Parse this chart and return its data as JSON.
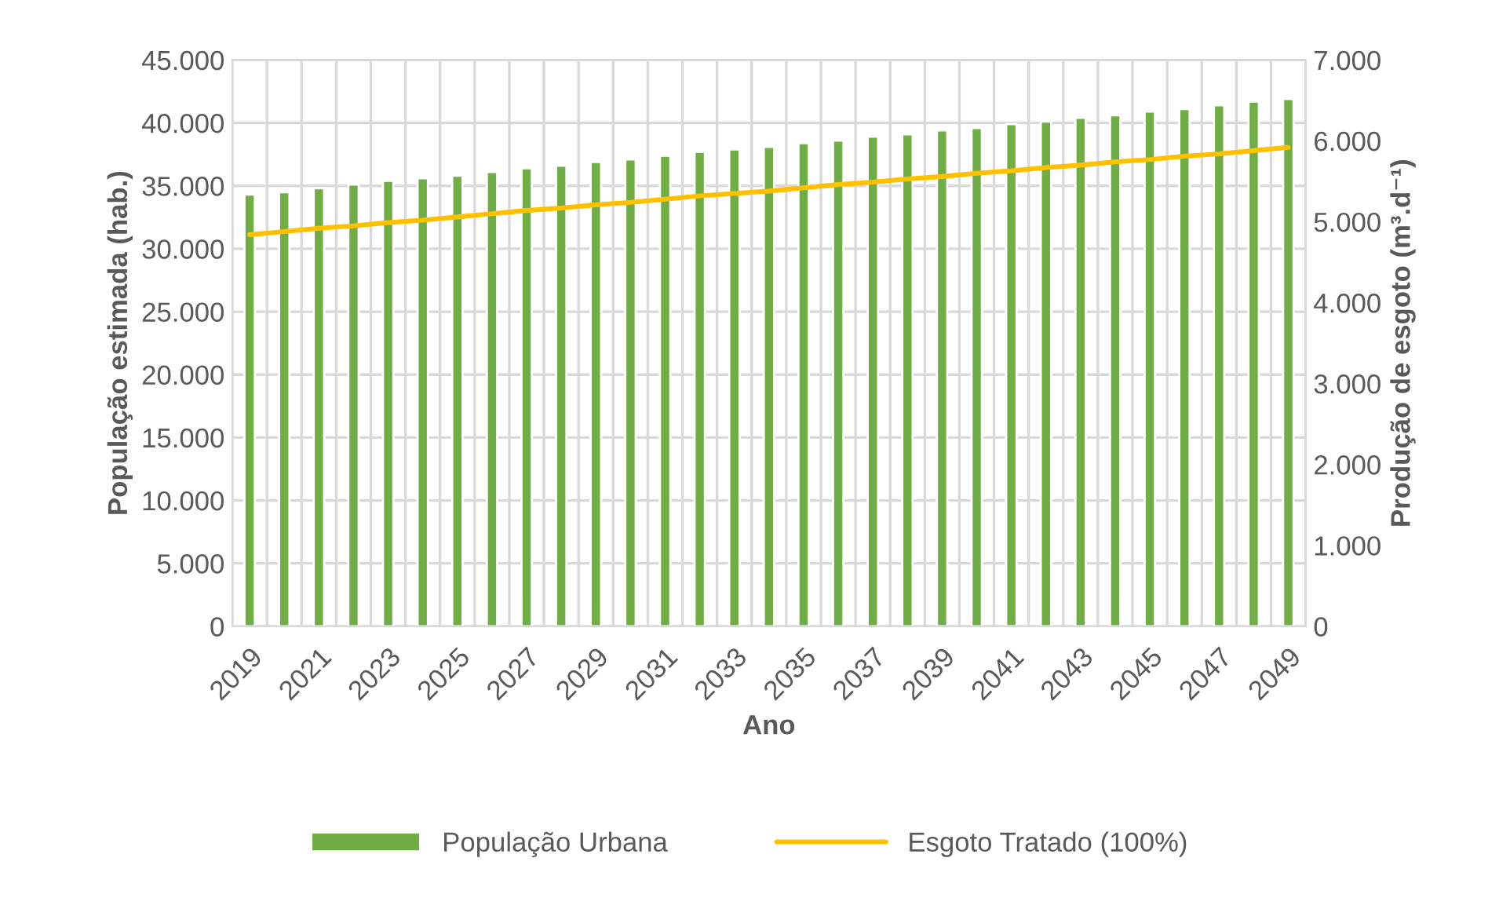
{
  "chart_data": {
    "type": "bar",
    "xlabel": "Ano",
    "ylabel": "População estimada (hab.)",
    "y2label": "Produção de esgoto (m³.d⁻¹)",
    "categories": [
      "2019",
      null,
      "2021",
      null,
      "2023",
      null,
      "2025",
      null,
      "2027",
      null,
      "2029",
      null,
      "2031",
      null,
      "2033",
      null,
      "2035",
      null,
      "2037",
      null,
      "2039",
      null,
      "2041",
      null,
      "2043",
      null,
      "2045",
      null,
      "2047",
      null,
      "2049"
    ],
    "series": [
      {
        "name": "População Urbana",
        "color": "#70ad47",
        "values": [
          34300,
          34500,
          34800,
          35100,
          35400,
          35600,
          35800,
          36100,
          36400,
          36600,
          36900,
          37100,
          37400,
          37700,
          37900,
          38100,
          38400,
          38600,
          38900,
          39100,
          39400,
          39600,
          39900,
          40100,
          40400,
          40600,
          40900,
          41100,
          41400,
          41700,
          41900
        ]
      },
      {
        "name": "Esgoto Tratado (100%)",
        "type": "line",
        "axis": "y2",
        "color": "#ffc000",
        "values": [
          4840,
          4880,
          4920,
          4950,
          4990,
          5020,
          5060,
          5100,
          5140,
          5170,
          5210,
          5240,
          5280,
          5320,
          5350,
          5380,
          5420,
          5460,
          5490,
          5530,
          5560,
          5600,
          5630,
          5670,
          5700,
          5740,
          5770,
          5810,
          5840,
          5880,
          5920
        ]
      }
    ],
    "ylim": [
      0,
      45000
    ],
    "yticks": [
      {
        "value": 0,
        "label": "0"
      },
      {
        "value": 5000,
        "label": "5.000"
      },
      {
        "value": 10000,
        "label": "10.000"
      },
      {
        "value": 15000,
        "label": "15.000"
      },
      {
        "value": 20000,
        "label": "20.000"
      },
      {
        "value": 25000,
        "label": "25.000"
      },
      {
        "value": 30000,
        "label": "30.000"
      },
      {
        "value": 35000,
        "label": "35.000"
      },
      {
        "value": 40000,
        "label": "40.000"
      },
      {
        "value": 45000,
        "label": "45.000"
      }
    ],
    "y2lim": [
      0,
      7000
    ],
    "y2ticks": [
      {
        "value": 0,
        "label": "0"
      },
      {
        "value": 1000,
        "label": "1.000"
      },
      {
        "value": 2000,
        "label": "2.000"
      },
      {
        "value": 3000,
        "label": "3.000"
      },
      {
        "value": 4000,
        "label": "4.000"
      },
      {
        "value": 5000,
        "label": "5.000"
      },
      {
        "value": 6000,
        "label": "6.000"
      },
      {
        "value": 7000,
        "label": "7.000"
      }
    ],
    "grid": true,
    "legend": "bottom",
    "marker": "none",
    "line_style": "solid"
  }
}
